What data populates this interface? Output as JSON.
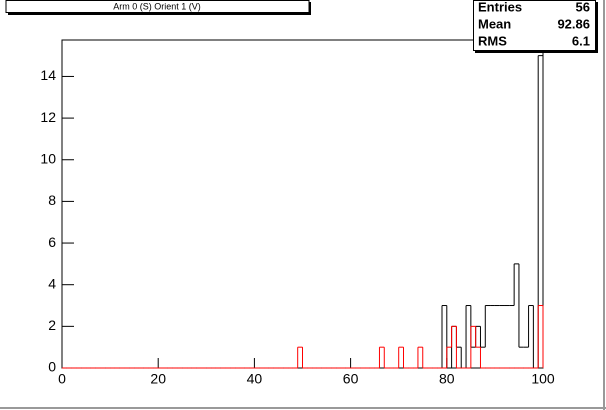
{
  "chart_data": {
    "type": "histogram",
    "title": "Arm 0 (S) Orient 1 (V)",
    "stats": [
      {
        "label": "Entries",
        "value": 56
      },
      {
        "label": "Mean",
        "value": 92.86
      },
      {
        "label": "RMS",
        "value": 6.1
      }
    ],
    "bins": [
      0,
      1,
      2,
      3,
      4,
      5,
      6,
      7,
      8,
      9,
      10,
      11,
      12,
      13,
      14,
      15,
      16,
      17,
      18,
      19,
      20,
      21,
      22,
      23,
      24,
      25,
      26,
      27,
      28,
      29,
      30,
      31,
      32,
      33,
      34,
      35,
      36,
      37,
      38,
      39,
      40,
      41,
      42,
      43,
      44,
      45,
      46,
      47,
      48,
      49,
      50,
      51,
      52,
      53,
      54,
      55,
      56,
      57,
      58,
      59,
      60,
      61,
      62,
      63,
      64,
      65,
      66,
      67,
      68,
      69,
      70,
      71,
      72,
      73,
      74,
      75,
      76,
      77,
      78,
      79,
      80,
      81,
      82,
      83,
      84,
      85,
      86,
      87,
      88,
      89,
      90,
      91,
      92,
      93,
      94,
      95,
      96,
      97,
      98,
      99,
      100
    ],
    "series": [
      {
        "color": "#000000",
        "values": [
          0,
          0,
          0,
          0,
          0,
          0,
          0,
          0,
          0,
          0,
          0,
          0,
          0,
          0,
          0,
          0,
          0,
          0,
          0,
          0,
          0,
          0,
          0,
          0,
          0,
          0,
          0,
          0,
          0,
          0,
          0,
          0,
          0,
          0,
          0,
          0,
          0,
          0,
          0,
          0,
          0,
          0,
          0,
          0,
          0,
          0,
          0,
          0,
          0,
          0,
          0,
          0,
          0,
          0,
          0,
          0,
          0,
          0,
          0,
          0,
          0,
          0,
          0,
          0,
          0,
          0,
          0,
          0,
          0,
          0,
          0,
          0,
          0,
          0,
          0,
          0,
          0,
          0,
          0,
          3,
          0,
          2,
          1,
          0,
          3,
          1,
          2,
          1,
          3,
          3,
          3,
          3,
          3,
          3,
          5,
          1,
          1,
          3,
          0,
          15
        ]
      },
      {
        "color": "#ff0000",
        "values": [
          0,
          0,
          0,
          0,
          0,
          0,
          0,
          0,
          0,
          0,
          0,
          0,
          0,
          0,
          0,
          0,
          0,
          0,
          0,
          0,
          0,
          0,
          0,
          0,
          0,
          0,
          0,
          0,
          0,
          0,
          0,
          0,
          0,
          0,
          0,
          0,
          0,
          0,
          0,
          0,
          0,
          0,
          0,
          0,
          0,
          0,
          0,
          0,
          0,
          1,
          0,
          0,
          0,
          0,
          0,
          0,
          0,
          0,
          0,
          0,
          0,
          0,
          0,
          0,
          0,
          0,
          1,
          0,
          0,
          0,
          1,
          0,
          0,
          0,
          1,
          0,
          0,
          0,
          0,
          0,
          1,
          2,
          0,
          0,
          0,
          2,
          1,
          0,
          0,
          0,
          0,
          0,
          0,
          0,
          0,
          0,
          0,
          0,
          0,
          3
        ]
      }
    ],
    "xlim": [
      0,
      100
    ],
    "xticks": [
      0,
      20,
      40,
      60,
      80,
      100
    ],
    "ylim": [
      0,
      15.75
    ],
    "yticks": [
      0,
      2,
      4,
      6,
      8,
      10,
      12,
      14
    ]
  }
}
